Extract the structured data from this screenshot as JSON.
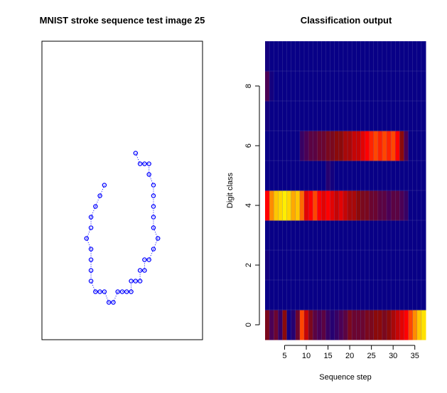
{
  "chart_data": [
    {
      "type": "scatter",
      "title": "MNIST stroke sequence test image 25",
      "xlabel": "",
      "ylabel": "",
      "axes_shown": false,
      "point_color": "#0000ff",
      "connector_style": "dotted",
      "points": [
        [
          -4.0,
          7.5
        ],
        [
          -5.0,
          6.5
        ],
        [
          -6.0,
          5.5
        ],
        [
          -7.0,
          4.5
        ],
        [
          -7.0,
          3.5
        ],
        [
          -8.0,
          2.5
        ],
        [
          -7.0,
          1.5
        ],
        [
          -7.0,
          0.5
        ],
        [
          -7.0,
          -0.5
        ],
        [
          -7.0,
          -1.5
        ],
        [
          -6.0,
          -2.5
        ],
        [
          -5.0,
          -2.5
        ],
        [
          -4.0,
          -2.5
        ],
        [
          -3.0,
          -3.5
        ],
        [
          -2.0,
          -3.5
        ],
        [
          -1.0,
          -2.5
        ],
        [
          0.0,
          -2.5
        ],
        [
          1.0,
          -2.5
        ],
        [
          2.0,
          -2.5
        ],
        [
          2.0,
          -1.5
        ],
        [
          3.0,
          -1.5
        ],
        [
          4.0,
          -1.5
        ],
        [
          4.0,
          -0.5
        ],
        [
          5.0,
          -0.5
        ],
        [
          5.0,
          0.5
        ],
        [
          6.0,
          0.5
        ],
        [
          7.0,
          1.5
        ],
        [
          8.0,
          2.5
        ],
        [
          7.0,
          3.5
        ],
        [
          7.0,
          4.5
        ],
        [
          7.0,
          5.5
        ],
        [
          7.0,
          6.5
        ],
        [
          7.0,
          7.5
        ],
        [
          6.0,
          8.5
        ],
        [
          6.0,
          9.5
        ],
        [
          5.0,
          9.5
        ],
        [
          4.0,
          9.5
        ],
        [
          3.0,
          10.5
        ]
      ],
      "xlim": [
        -18.0,
        18.0
      ],
      "ylim": [
        -7.0,
        21.0
      ]
    },
    {
      "type": "heatmap",
      "title": "Classification output",
      "xlabel": "Sequence step",
      "ylabel": "Digit class",
      "x_ticks": [
        5,
        10,
        15,
        20,
        25,
        30,
        35
      ],
      "y_ticks": [
        0,
        2,
        4,
        6,
        8
      ],
      "x_range": [
        1,
        37
      ],
      "y_range": [
        0,
        9
      ],
      "colormap": [
        "#00008b",
        "#4b0055",
        "#8b0a0a",
        "#ff0000",
        "#ff8c00",
        "#ffff00"
      ],
      "rows": {
        "0": [
          0.35,
          0.2,
          0.3,
          0.15,
          0.4,
          0.05,
          0.1,
          0.3,
          0.7,
          0.5,
          0.35,
          0.25,
          0.2,
          0.25,
          0.15,
          0.1,
          0.15,
          0.2,
          0.25,
          0.35,
          0.3,
          0.3,
          0.3,
          0.35,
          0.35,
          0.4,
          0.4,
          0.35,
          0.4,
          0.45,
          0.5,
          0.55,
          0.6,
          0.7,
          0.8,
          0.9,
          0.95
        ],
        "1": [
          0.02,
          0.02,
          0.02,
          0.02,
          0.02,
          0.02,
          0.02,
          0.02,
          0.02,
          0.02,
          0.02,
          0.02,
          0.02,
          0.02,
          0.02,
          0.02,
          0.02,
          0.02,
          0.02,
          0.02,
          0.02,
          0.02,
          0.02,
          0.02,
          0.02,
          0.02,
          0.02,
          0.02,
          0.02,
          0.02,
          0.02,
          0.02,
          0.02,
          0.02,
          0.02,
          0.02,
          0.02
        ],
        "2": [
          0.05,
          0.02,
          0.02,
          0.02,
          0.02,
          0.02,
          0.02,
          0.02,
          0.02,
          0.02,
          0.02,
          0.02,
          0.02,
          0.02,
          0.02,
          0.02,
          0.02,
          0.02,
          0.02,
          0.02,
          0.02,
          0.02,
          0.02,
          0.02,
          0.02,
          0.02,
          0.02,
          0.02,
          0.02,
          0.02,
          0.02,
          0.02,
          0.02,
          0.02,
          0.02,
          0.02,
          0.02
        ],
        "3": [
          0.02,
          0.02,
          0.02,
          0.02,
          0.02,
          0.02,
          0.02,
          0.02,
          0.02,
          0.02,
          0.02,
          0.02,
          0.02,
          0.02,
          0.02,
          0.02,
          0.02,
          0.02,
          0.02,
          0.02,
          0.02,
          0.02,
          0.02,
          0.02,
          0.02,
          0.02,
          0.02,
          0.02,
          0.02,
          0.02,
          0.02,
          0.02,
          0.02,
          0.02,
          0.02,
          0.02,
          0.02
        ],
        "4": [
          0.6,
          0.8,
          0.9,
          0.93,
          0.97,
          0.93,
          0.85,
          0.9,
          0.75,
          0.55,
          0.6,
          0.7,
          0.6,
          0.55,
          0.6,
          0.55,
          0.5,
          0.55,
          0.5,
          0.45,
          0.45,
          0.4,
          0.35,
          0.35,
          0.3,
          0.3,
          0.25,
          0.25,
          0.2,
          0.25,
          0.25,
          0.2,
          0.15,
          0.02,
          0.02,
          0.02,
          0.02
        ],
        "5": [
          0.02,
          0.02,
          0.02,
          0.02,
          0.02,
          0.02,
          0.02,
          0.02,
          0.02,
          0.02,
          0.02,
          0.02,
          0.02,
          0.02,
          0.1,
          0.05,
          0.02,
          0.02,
          0.02,
          0.02,
          0.02,
          0.02,
          0.02,
          0.02,
          0.02,
          0.02,
          0.02,
          0.02,
          0.02,
          0.02,
          0.02,
          0.02,
          0.02,
          0.02,
          0.02,
          0.02,
          0.02
        ],
        "6": [
          0.02,
          0.02,
          0.02,
          0.02,
          0.02,
          0.02,
          0.02,
          0.02,
          0.15,
          0.2,
          0.25,
          0.25,
          0.3,
          0.3,
          0.35,
          0.35,
          0.4,
          0.4,
          0.45,
          0.45,
          0.5,
          0.5,
          0.55,
          0.6,
          0.65,
          0.7,
          0.65,
          0.7,
          0.65,
          0.7,
          0.6,
          0.4,
          0.2,
          0.02,
          0.02,
          0.02,
          0.02
        ],
        "7": [
          0.05,
          0.02,
          0.02,
          0.02,
          0.02,
          0.02,
          0.02,
          0.02,
          0.02,
          0.02,
          0.02,
          0.02,
          0.02,
          0.02,
          0.02,
          0.02,
          0.02,
          0.02,
          0.02,
          0.02,
          0.02,
          0.02,
          0.02,
          0.02,
          0.02,
          0.02,
          0.02,
          0.02,
          0.02,
          0.02,
          0.02,
          0.02,
          0.02,
          0.02,
          0.02,
          0.02,
          0.02
        ],
        "8": [
          0.2,
          0.05,
          0.02,
          0.02,
          0.02,
          0.02,
          0.02,
          0.02,
          0.02,
          0.02,
          0.02,
          0.02,
          0.02,
          0.02,
          0.02,
          0.02,
          0.02,
          0.02,
          0.02,
          0.02,
          0.02,
          0.02,
          0.02,
          0.02,
          0.02,
          0.02,
          0.02,
          0.02,
          0.02,
          0.02,
          0.02,
          0.02,
          0.02,
          0.02,
          0.02,
          0.02,
          0.02
        ],
        "9": [
          0.05,
          0.02,
          0.02,
          0.02,
          0.02,
          0.02,
          0.02,
          0.02,
          0.02,
          0.02,
          0.02,
          0.02,
          0.02,
          0.02,
          0.02,
          0.02,
          0.02,
          0.02,
          0.02,
          0.02,
          0.02,
          0.02,
          0.02,
          0.02,
          0.02,
          0.02,
          0.02,
          0.02,
          0.02,
          0.02,
          0.02,
          0.02,
          0.02,
          0.02,
          0.02,
          0.02,
          0.02
        ]
      }
    }
  ]
}
